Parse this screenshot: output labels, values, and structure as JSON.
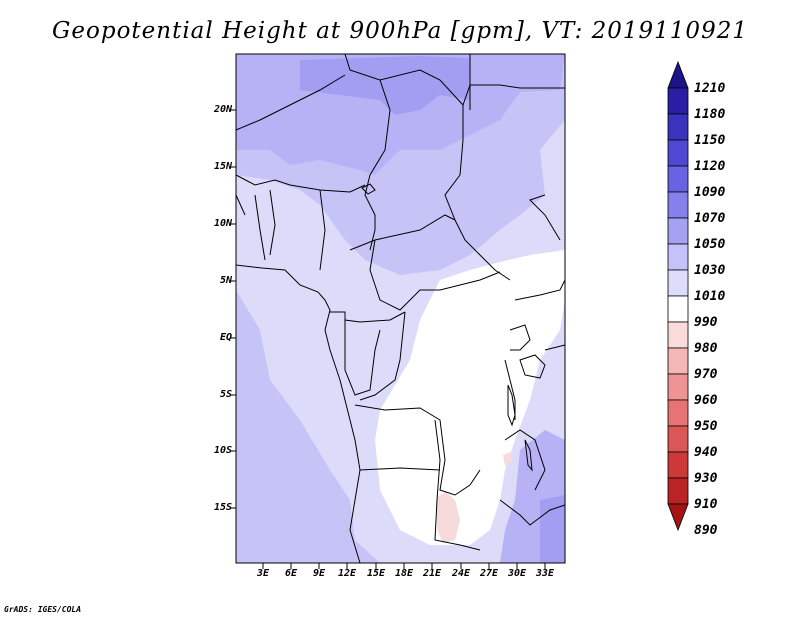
{
  "title": "Geopotential Height at 900hPa [gpm], VT: 2019110921",
  "credit": "GrADS: IGES/COLA",
  "map": {
    "lat_labels": [
      "20N",
      "15N",
      "10N",
      "5N",
      "EQ",
      "5S",
      "10S",
      "15S"
    ],
    "lon_labels": [
      "3E",
      "6E",
      "9E",
      "12E",
      "15E",
      "18E",
      "21E",
      "24E",
      "27E",
      "30E",
      "33E"
    ],
    "fill_colors": {
      "deep": "#8c85ee",
      "mid": "#a9a3f3",
      "light": "#c6c4f7",
      "pale": "#dcdcfa",
      "white": "#ffffff",
      "pink": "#f7dbdb"
    }
  },
  "colorbar": {
    "labels": [
      "1210",
      "1180",
      "1150",
      "1120",
      "1090",
      "1070",
      "1050",
      "1030",
      "1010",
      "990",
      "980",
      "970",
      "960",
      "950",
      "940",
      "930",
      "910",
      "890"
    ],
    "colors": [
      "#1e1489",
      "#2a1fa4",
      "#3a33bd",
      "#4e48d2",
      "#6863e2",
      "#8580ec",
      "#a5a1f3",
      "#c4c2f8",
      "#dddcfb",
      "#ffffff",
      "#fbdada",
      "#f5b6b6",
      "#ee9494",
      "#e67474",
      "#db5656",
      "#cd3939",
      "#bb2424",
      "#a51414"
    ]
  }
}
